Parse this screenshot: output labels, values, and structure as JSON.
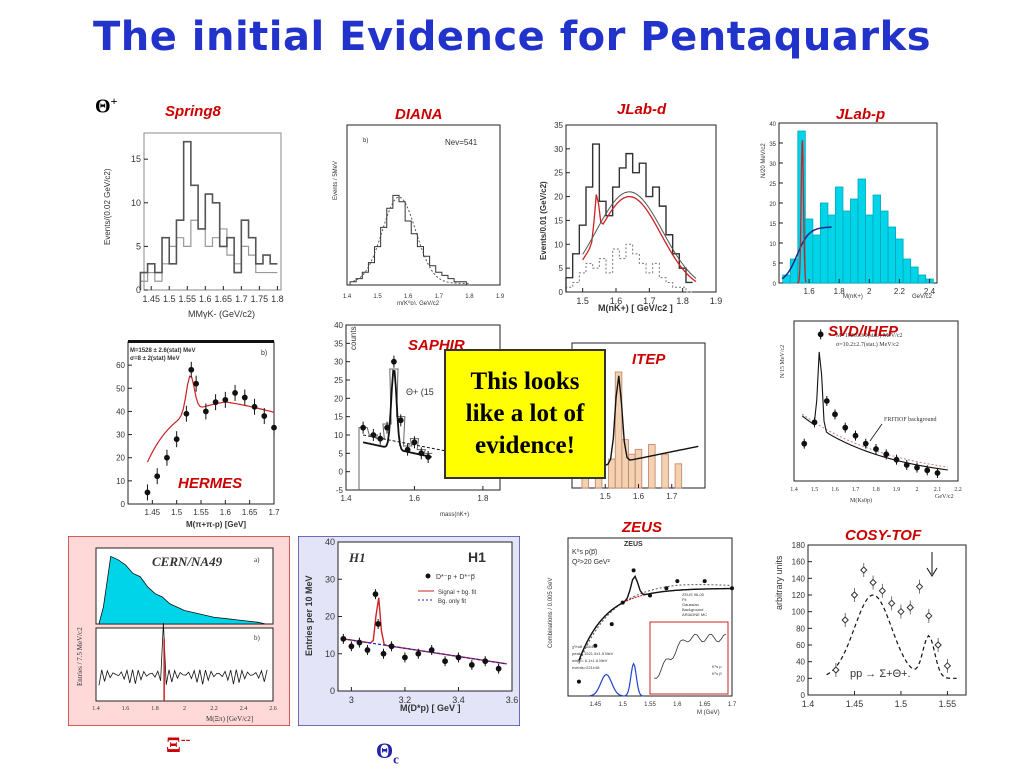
{
  "slide": {
    "title": "The initial Evidence for Pentaquarks",
    "callout": "This looks\nlike a lot of\nevidence!",
    "theta_plus": "Θ",
    "theta_plus_sup": "+",
    "xi_label": "Ξ",
    "xi_sup": "--",
    "theta_c": "Θ",
    "theta_c_sub": "c",
    "colors": {
      "title": "#2233cc",
      "label": "#cc0000",
      "callout_bg": "#ffff00",
      "fill_cyan": "#00d4e8",
      "fill_tan": "#f3d2b3"
    }
  },
  "experiments": {
    "spring8": "Spring8",
    "diana": "DIANA",
    "jlab_d": "JLab-d",
    "jlab_p": "JLab-p",
    "hermes": "HERMES",
    "saphir": "SAPHIR",
    "itep": "ITEP",
    "svd": "SVD/IHEP",
    "cern": "CERN/NA49",
    "h1": "H1",
    "zeus": "ZEUS",
    "cosy": "COSY-TOF"
  },
  "chart_data": [
    {
      "id": "spring8",
      "type": "line",
      "title": "Spring8",
      "xlabel": "MMγK- (GeV/c2)",
      "ylabel": "Events/(0.02 GeV/c2)",
      "xlim": [
        1.43,
        1.81
      ],
      "ylim": [
        0,
        18
      ],
      "xticks": [
        "1.45",
        "1.5",
        "1.55",
        "1.6",
        "1.65",
        "1.7",
        "1.75",
        "1.8"
      ],
      "yticks": [
        "0",
        "5",
        "10",
        "15"
      ],
      "x": [
        1.43,
        1.45,
        1.47,
        1.49,
        1.51,
        1.53,
        1.55,
        1.57,
        1.59,
        1.61,
        1.63,
        1.65,
        1.67,
        1.69,
        1.71,
        1.73,
        1.75,
        1.77,
        1.79
      ],
      "series": [
        {
          "values": [
            2,
            3,
            2,
            6,
            3,
            8,
            17,
            12,
            7,
            11,
            10,
            5,
            6,
            2,
            8,
            6,
            3,
            4,
            3
          ]
        },
        {
          "values": [
            1,
            2,
            1,
            3,
            5,
            6,
            5,
            8,
            7,
            5,
            6,
            7,
            4,
            3,
            5,
            4,
            2,
            2,
            2
          ]
        }
      ]
    },
    {
      "id": "diana",
      "type": "line",
      "title": "DIANA",
      "annotation": "Nev=541",
      "panel_letter": "b)",
      "xlabel": "m(K⁰p), GeV/c2",
      "ylabel": "Events / 5MeV",
      "xlim": [
        1.4,
        1.9
      ],
      "ylim": [
        0,
        50
      ],
      "xticks": [
        "1.4",
        "1.5",
        "1.6",
        "1.7",
        "1.8",
        "1.9"
      ],
      "x": [
        1.42,
        1.44,
        1.46,
        1.48,
        1.5,
        1.52,
        1.54,
        1.56,
        1.58,
        1.6,
        1.62,
        1.64,
        1.66,
        1.68,
        1.7,
        1.72,
        1.74,
        1.76,
        1.78,
        1.8
      ],
      "values": [
        1,
        2,
        4,
        7,
        12,
        18,
        24,
        28,
        26,
        20,
        16,
        12,
        9,
        6,
        4,
        3,
        2,
        1,
        1,
        0
      ]
    },
    {
      "id": "jlab_d",
      "type": "line",
      "title": "JLab-d",
      "xlabel": "M(nK+) [ GeV/c2 ]",
      "ylabel": "Events/0.01 (GeV/c2)",
      "xlim": [
        1.45,
        1.9
      ],
      "ylim": [
        0,
        35
      ],
      "xticks": [
        "1.5",
        "1.6",
        "1.7",
        "1.8",
        "1.9"
      ],
      "yticks": [
        "0",
        "5",
        "10",
        "15",
        "20",
        "25",
        "30",
        "35"
      ],
      "x": [
        1.46,
        1.48,
        1.5,
        1.52,
        1.54,
        1.56,
        1.58,
        1.6,
        1.62,
        1.64,
        1.66,
        1.68,
        1.7,
        1.72,
        1.74,
        1.76,
        1.78,
        1.8,
        1.82
      ],
      "series": [
        {
          "name": "",
          "values": [
            3,
            8,
            14,
            22,
            31,
            19,
            16,
            22,
            26,
            29,
            25,
            27,
            20,
            22,
            18,
            12,
            8,
            5,
            2
          ]
        },
        {
          "name": "",
          "values": [
            1,
            2,
            4,
            6,
            5,
            7,
            4,
            9,
            7,
            10,
            8,
            6,
            4,
            6,
            3,
            2,
            1,
            1,
            0
          ]
        }
      ]
    },
    {
      "id": "jlab_p",
      "type": "bar",
      "title": "JLab-p",
      "xlabel": "M(nK+)",
      "ylabel": "N/20 MeV/c2",
      "xunit": "GeV/c2",
      "xlim": [
        1.4,
        2.45
      ],
      "ylim": [
        0,
        40
      ],
      "xticks": [
        "1.6",
        "1.8",
        "2",
        "2.2",
        "2.4"
      ],
      "yticks": [
        "0",
        "5",
        "10",
        "15",
        "20",
        "25",
        "30",
        "35",
        "40"
      ],
      "x": [
        1.45,
        1.5,
        1.55,
        1.6,
        1.65,
        1.7,
        1.75,
        1.8,
        1.85,
        1.9,
        1.95,
        2.0,
        2.05,
        2.1,
        2.15,
        2.2,
        2.25,
        2.3,
        2.35,
        2.4
      ],
      "values": [
        2,
        6,
        38,
        16,
        12,
        20,
        17,
        24,
        18,
        21,
        26,
        17,
        22,
        18,
        14,
        11,
        6,
        4,
        2,
        1
      ]
    },
    {
      "id": "hermes",
      "type": "scatter",
      "title": "HERMES",
      "panel_letter": "b)",
      "header": [
        "M=1528 ± 2.6(stat) MeV",
        "σ=8 ± 2(stat) MeV"
      ],
      "xlabel": "M(π+π-p) [GeV]",
      "ylabel": "",
      "xlim": [
        1.4,
        1.7
      ],
      "ylim": [
        0,
        70
      ],
      "xticks": [
        "1.45",
        "1.5",
        "1.55",
        "1.6",
        "1.65",
        "1.7"
      ],
      "yticks": [
        "0",
        "10",
        "20",
        "30",
        "40",
        "50",
        "60"
      ],
      "x": [
        1.44,
        1.46,
        1.48,
        1.5,
        1.52,
        1.53,
        1.54,
        1.56,
        1.58,
        1.6,
        1.62,
        1.64,
        1.66,
        1.68,
        1.7
      ],
      "values": [
        5,
        12,
        20,
        28,
        39,
        58,
        52,
        40,
        44,
        45,
        48,
        46,
        42,
        38,
        33
      ]
    },
    {
      "id": "saphir",
      "type": "scatter",
      "title": "SAPHIR",
      "annotation": "Θ+ (15",
      "xlabel": "mass(nK+)",
      "ylabel": "counts",
      "xlim": [
        1.4,
        1.85
      ],
      "ylim": [
        -5,
        40
      ],
      "xticks": [
        "1.4",
        "1.6",
        "1.8"
      ],
      "yticks": [
        "-5",
        "0",
        "5",
        "10",
        "15",
        "20",
        "25",
        "30",
        "35",
        "40"
      ],
      "x": [
        1.45,
        1.48,
        1.5,
        1.52,
        1.54,
        1.56,
        1.58,
        1.6,
        1.62,
        1.64
      ],
      "values": [
        12,
        10,
        9,
        12,
        30,
        14,
        6,
        8,
        5,
        4
      ]
    },
    {
      "id": "itep",
      "type": "bar",
      "title": "ITEP",
      "xlim": [
        1.4,
        1.8
      ],
      "ylim": [
        0,
        30
      ],
      "xticks": [
        "1.5",
        "1.6",
        "1.7"
      ],
      "x": [
        1.44,
        1.48,
        1.52,
        1.54,
        1.56,
        1.58,
        1.6,
        1.64,
        1.68,
        1.72
      ],
      "values": [
        3,
        5,
        6,
        24,
        10,
        7,
        8,
        9,
        7,
        5
      ]
    },
    {
      "id": "svd",
      "type": "scatter",
      "title": "SVD/IHEP",
      "header": [
        "M=1526±3.0(stat.) MeV/c2",
        "σ=10.2±2.7(stat.) MeV/c2"
      ],
      "annotation": "FRITIOF background",
      "xlabel": "M(Ks0p)",
      "xunit": "GeV/c2",
      "ylabel": "N/15 MeV/c2",
      "xlim": [
        1.4,
        2.2
      ],
      "ylim": [
        0,
        60
      ],
      "xticks": [
        "1.4",
        "1.5",
        "1.6",
        "1.7",
        "1.8",
        "1.9",
        "2",
        "2.1",
        "2.2"
      ],
      "x": [
        1.45,
        1.5,
        1.53,
        1.56,
        1.6,
        1.65,
        1.7,
        1.75,
        1.8,
        1.85,
        1.9,
        1.95,
        2.0,
        2.05,
        2.1
      ],
      "values": [
        14,
        22,
        55,
        30,
        25,
        20,
        17,
        14,
        12,
        10,
        8,
        6,
        5,
        4,
        3
      ]
    },
    {
      "id": "cern",
      "type": "area",
      "title": "CERN/NA49",
      "panel_letters": [
        "a)",
        "b)"
      ],
      "xlabel": "M(Ξπ) [GeV/c2]",
      "ylabel": "Entries / 7.5 MeV/c2",
      "xlim": [
        1.4,
        2.6
      ],
      "xticks": [
        "1.4",
        "1.6",
        "1.8",
        "2",
        "2.2",
        "2.4",
        "2.6"
      ],
      "x": [
        1.45,
        1.5,
        1.55,
        1.6,
        1.65,
        1.7,
        1.75,
        1.8,
        1.85,
        1.9,
        2.0,
        2.1,
        2.2,
        2.3,
        2.4,
        2.5
      ],
      "values": [
        10,
        40,
        38,
        35,
        30,
        28,
        22,
        18,
        16,
        12,
        8,
        6,
        4,
        3,
        2,
        1
      ]
    },
    {
      "id": "h1",
      "type": "bar",
      "title": "H1",
      "legend": [
        "D*⁻p + D*⁺p̅",
        "Signal + bg. fit",
        "Bg. only fit"
      ],
      "xlabel": "M(D*p) [ GeV ]",
      "ylabel": "Entries per 10 MeV",
      "xlim": [
        2.95,
        3.6
      ],
      "ylim": [
        0,
        40
      ],
      "xticks": [
        "3",
        "3.2",
        "3.4",
        "3.6"
      ],
      "yticks": [
        "0",
        "10",
        "20",
        "30",
        "40"
      ],
      "x": [
        2.97,
        3.0,
        3.03,
        3.06,
        3.09,
        3.1,
        3.12,
        3.15,
        3.2,
        3.25,
        3.3,
        3.35,
        3.4,
        3.45,
        3.5,
        3.55
      ],
      "values": [
        14,
        12,
        13,
        11,
        26,
        18,
        10,
        12,
        9,
        10,
        11,
        8,
        9,
        7,
        8,
        6
      ]
    },
    {
      "id": "zeus",
      "type": "line",
      "title": "ZEUS",
      "header": [
        "K⁰s p(p̅)",
        "Q²>20 GeV²"
      ],
      "legend": [
        "ZEUS 96-00",
        "Fit",
        "Gaussian",
        "Background",
        "ARIADNE MC"
      ],
      "inset_legend": [
        "K⁰s p",
        "K⁰s p̅"
      ],
      "stats": [
        "χ²/ndf =34/44",
        "peak= 1521.5±1.5 MeV",
        "width= 6.1±1.6 MeV",
        "events=221±48"
      ],
      "xlabel": "M (GeV)",
      "ylabel": "Combinations / 0.005 GeV",
      "xlim": [
        1.4,
        1.7
      ],
      "xticks": [
        "1.45",
        "1.5",
        "1.55",
        "1.6",
        "1.65",
        "1.7"
      ],
      "x": [
        1.42,
        1.45,
        1.48,
        1.5,
        1.52,
        1.55,
        1.58,
        1.6,
        1.65,
        1.7
      ],
      "values": [
        20,
        70,
        100,
        130,
        175,
        140,
        150,
        160,
        160,
        150
      ]
    },
    {
      "id": "cosy",
      "type": "scatter",
      "title": "COSY-TOF",
      "annotation": "pp → Σ+Θ+.",
      "ylabel": "arbitrary units",
      "xlim": [
        1.4,
        1.57
      ],
      "ylim": [
        0,
        180
      ],
      "xticks": [
        "1.4",
        "1.45",
        "1.5",
        "1.55"
      ],
      "yticks": [
        "0",
        "20",
        "40",
        "60",
        "80",
        "100",
        "120",
        "140",
        "160",
        "180"
      ],
      "x": [
        1.43,
        1.44,
        1.45,
        1.46,
        1.47,
        1.48,
        1.49,
        1.5,
        1.51,
        1.52,
        1.53,
        1.54,
        1.55
      ],
      "values": [
        30,
        90,
        120,
        150,
        135,
        125,
        110,
        100,
        105,
        130,
        95,
        60,
        35
      ]
    }
  ]
}
